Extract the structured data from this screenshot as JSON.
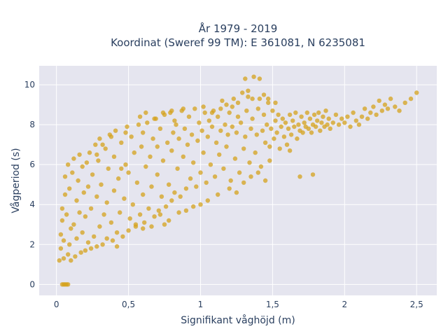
{
  "chart_data": {
    "type": "scatter",
    "title_line1": "År 1979 - 2019",
    "title_line2": "Koordinat (Sweref 99 TM): E 361081, N 6235081",
    "xlabel": "Signifikant våghöjd (m)",
    "ylabel": "Vågperiod (s)",
    "xlim": [
      -0.12,
      2.64
    ],
    "ylim": [
      -0.55,
      10.95
    ],
    "x_ticks": [
      0,
      0.5,
      1,
      1.5,
      2,
      2.5
    ],
    "x_tick_labels": [
      "0",
      "0,5",
      "1",
      "1,5",
      "2",
      "2,5"
    ],
    "y_ticks": [
      0,
      2,
      4,
      6,
      8,
      10
    ],
    "y_tick_labels": [
      "0",
      "2",
      "4",
      "6",
      "8",
      "10"
    ],
    "grid": true,
    "colors": {
      "marker": "#d4a21c",
      "plot_bg": "#e5e5ef",
      "grid": "#ffffff"
    },
    "marker_opacity": 0.75,
    "points": [
      [
        0.04,
        0
      ],
      [
        0.05,
        0
      ],
      [
        0.06,
        0
      ],
      [
        0.07,
        0
      ],
      [
        0.08,
        0
      ],
      [
        0.02,
        1.2
      ],
      [
        0.03,
        1.8
      ],
      [
        0.03,
        2.5
      ],
      [
        0.04,
        3.2
      ],
      [
        0.04,
        3.8
      ],
      [
        0.05,
        1.3
      ],
      [
        0.05,
        2.2
      ],
      [
        0.06,
        4.5
      ],
      [
        0.06,
        5.4
      ],
      [
        0.07,
        3.5
      ],
      [
        0.08,
        1.5
      ],
      [
        0.08,
        6.0
      ],
      [
        0.09,
        2.0
      ],
      [
        0.09,
        4.8
      ],
      [
        0.1,
        1.2
      ],
      [
        0.1,
        2.8
      ],
      [
        0.11,
        5.6
      ],
      [
        0.12,
        3.0
      ],
      [
        0.12,
        6.3
      ],
      [
        0.13,
        1.4
      ],
      [
        0.14,
        2.3
      ],
      [
        0.14,
        4.2
      ],
      [
        0.15,
        5.2
      ],
      [
        0.16,
        3.6
      ],
      [
        0.16,
        6.5
      ],
      [
        0.17,
        1.6
      ],
      [
        0.18,
        2.6
      ],
      [
        0.18,
        5.9
      ],
      [
        0.19,
        4.6
      ],
      [
        0.2,
        1.7
      ],
      [
        0.2,
        3.4
      ],
      [
        0.21,
        6.1
      ],
      [
        0.22,
        2.1
      ],
      [
        0.22,
        4.9
      ],
      [
        0.23,
        6.6
      ],
      [
        0.24,
        1.8
      ],
      [
        0.24,
        3.8
      ],
      [
        0.25,
        5.5
      ],
      [
        0.26,
        2.4
      ],
      [
        0.27,
        7.0
      ],
      [
        0.28,
        1.9
      ],
      [
        0.28,
        4.4
      ],
      [
        0.29,
        6.2
      ],
      [
        0.3,
        2.9
      ],
      [
        0.3,
        7.3
      ],
      [
        0.31,
        5.0
      ],
      [
        0.32,
        2.0
      ],
      [
        0.33,
        3.5
      ],
      [
        0.34,
        6.8
      ],
      [
        0.35,
        4.1
      ],
      [
        0.35,
        2.3
      ],
      [
        0.36,
        5.8
      ],
      [
        0.37,
        7.5
      ],
      [
        0.38,
        3.1
      ],
      [
        0.39,
        2.2
      ],
      [
        0.4,
        4.7
      ],
      [
        0.4,
        6.4
      ],
      [
        0.41,
        7.7
      ],
      [
        0.42,
        2.6
      ],
      [
        0.43,
        5.3
      ],
      [
        0.44,
        3.6
      ],
      [
        0.45,
        7.1
      ],
      [
        0.46,
        2.4
      ],
      [
        0.47,
        4.3
      ],
      [
        0.48,
        6.0
      ],
      [
        0.49,
        7.9
      ],
      [
        0.5,
        2.7
      ],
      [
        0.5,
        5.6
      ],
      [
        0.51,
        3.3
      ],
      [
        0.52,
        7.4
      ],
      [
        0.53,
        4.0
      ],
      [
        0.54,
        6.6
      ],
      [
        0.55,
        2.9
      ],
      [
        0.56,
        5.1
      ],
      [
        0.57,
        8.0
      ],
      [
        0.58,
        3.5
      ],
      [
        0.59,
        6.9
      ],
      [
        0.6,
        4.5
      ],
      [
        0.6,
        7.6
      ],
      [
        0.61,
        3.1
      ],
      [
        0.62,
        5.9
      ],
      [
        0.63,
        8.1
      ],
      [
        0.64,
        3.8
      ],
      [
        0.65,
        6.4
      ],
      [
        0.66,
        4.9
      ],
      [
        0.67,
        7.3
      ],
      [
        0.68,
        3.4
      ],
      [
        0.69,
        8.3
      ],
      [
        0.7,
        5.5
      ],
      [
        0.7,
        6.9
      ],
      [
        0.71,
        3.7
      ],
      [
        0.72,
        7.8
      ],
      [
        0.73,
        4.4
      ],
      [
        0.74,
        6.2
      ],
      [
        0.75,
        8.5
      ],
      [
        0.76,
        3.9
      ],
      [
        0.77,
        7.1
      ],
      [
        0.78,
        5.0
      ],
      [
        0.79,
        8.6
      ],
      [
        0.8,
        4.2
      ],
      [
        0.8,
        6.7
      ],
      [
        0.81,
        7.6
      ],
      [
        0.82,
        4.6
      ],
      [
        0.83,
        8.0
      ],
      [
        0.84,
        5.8
      ],
      [
        0.85,
        7.3
      ],
      [
        0.86,
        4.4
      ],
      [
        0.87,
        8.7
      ],
      [
        0.88,
        6.4
      ],
      [
        0.89,
        7.8
      ],
      [
        0.9,
        4.8
      ],
      [
        0.91,
        7.0
      ],
      [
        0.92,
        8.4
      ],
      [
        0.93,
        5.3
      ],
      [
        0.94,
        7.5
      ],
      [
        0.95,
        6.1
      ],
      [
        0.96,
        8.8
      ],
      [
        0.97,
        4.9
      ],
      [
        0.98,
        7.2
      ],
      [
        0.99,
        8.1
      ],
      [
        1.0,
        5.6
      ],
      [
        1.01,
        7.7
      ],
      [
        1.02,
        6.6
      ],
      [
        1.03,
        8.6
      ],
      [
        1.04,
        5.1
      ],
      [
        1.05,
        7.4
      ],
      [
        1.06,
        8.2
      ],
      [
        1.07,
        6.0
      ],
      [
        1.08,
        7.9
      ],
      [
        1.09,
        8.7
      ],
      [
        1.1,
        5.4
      ],
      [
        1.11,
        7.1
      ],
      [
        1.12,
        8.4
      ],
      [
        1.13,
        6.5
      ],
      [
        1.14,
        7.7
      ],
      [
        1.15,
        9.2
      ],
      [
        1.16,
        5.8
      ],
      [
        1.17,
        8.0
      ],
      [
        1.18,
        6.9
      ],
      [
        1.19,
        7.5
      ],
      [
        1.2,
        8.6
      ],
      [
        1.21,
        5.2
      ],
      [
        1.22,
        7.9
      ],
      [
        1.23,
        9.3
      ],
      [
        1.24,
        6.3
      ],
      [
        1.25,
        7.6
      ],
      [
        1.26,
        8.4
      ],
      [
        1.27,
        5.6
      ],
      [
        1.28,
        8.1
      ],
      [
        1.29,
        9.6
      ],
      [
        1.3,
        6.8
      ],
      [
        1.31,
        7.4
      ],
      [
        1.32,
        8.7
      ],
      [
        1.33,
        9.4
      ],
      [
        1.34,
        6.1
      ],
      [
        1.35,
        7.8
      ],
      [
        1.36,
        8.3
      ],
      [
        1.37,
        10.4
      ],
      [
        1.38,
        6.6
      ],
      [
        1.39,
        7.5
      ],
      [
        1.4,
        8.8
      ],
      [
        1.41,
        9.3
      ],
      [
        1.42,
        5.9
      ],
      [
        1.43,
        7.7
      ],
      [
        1.44,
        8.5
      ],
      [
        1.45,
        7.1
      ],
      [
        1.46,
        8.0
      ],
      [
        1.47,
        9.1
      ],
      [
        1.48,
        6.9
      ],
      [
        1.49,
        7.8
      ],
      [
        1.5,
        8.7
      ],
      [
        1.51,
        7.3
      ],
      [
        1.52,
        8.2
      ],
      [
        1.53,
        7.6
      ],
      [
        1.54,
        8.5
      ],
      [
        1.55,
        6.8
      ],
      [
        1.56,
        7.9
      ],
      [
        1.57,
        8.3
      ],
      [
        1.58,
        7.4
      ],
      [
        1.59,
        8.1
      ],
      [
        1.6,
        7.0
      ],
      [
        1.61,
        7.8
      ],
      [
        1.62,
        8.5
      ],
      [
        1.63,
        7.5
      ],
      [
        1.64,
        8.2
      ],
      [
        1.65,
        7.9
      ],
      [
        1.66,
        8.6
      ],
      [
        1.67,
        7.3
      ],
      [
        1.68,
        8.0
      ],
      [
        1.69,
        7.7
      ],
      [
        1.7,
        8.4
      ],
      [
        1.71,
        7.6
      ],
      [
        1.72,
        8.1
      ],
      [
        1.73,
        7.9
      ],
      [
        1.74,
        8.6
      ],
      [
        1.75,
        7.8
      ],
      [
        1.76,
        8.3
      ],
      [
        1.77,
        7.6
      ],
      [
        1.78,
        8.0
      ],
      [
        1.79,
        8.5
      ],
      [
        1.8,
        7.9
      ],
      [
        1.81,
        8.2
      ],
      [
        1.82,
        8.6
      ],
      [
        1.83,
        7.7
      ],
      [
        1.84,
        8.1
      ],
      [
        1.85,
        8.4
      ],
      [
        1.86,
        7.9
      ],
      [
        1.87,
        8.7
      ],
      [
        1.88,
        8.0
      ],
      [
        1.89,
        8.3
      ],
      [
        1.9,
        7.8
      ],
      [
        1.92,
        8.1
      ],
      [
        1.94,
        8.5
      ],
      [
        1.96,
        8.0
      ],
      [
        1.98,
        8.3
      ],
      [
        2.0,
        8.1
      ],
      [
        2.02,
        8.4
      ],
      [
        2.04,
        7.9
      ],
      [
        2.06,
        8.6
      ],
      [
        2.08,
        8.2
      ],
      [
        2.1,
        8.0
      ],
      [
        2.12,
        8.4
      ],
      [
        2.14,
        8.8
      ],
      [
        2.16,
        8.3
      ],
      [
        2.18,
        8.6
      ],
      [
        2.2,
        8.9
      ],
      [
        2.22,
        8.5
      ],
      [
        2.24,
        9.2
      ],
      [
        2.26,
        8.7
      ],
      [
        2.28,
        9.0
      ],
      [
        2.3,
        8.8
      ],
      [
        2.32,
        9.3
      ],
      [
        2.35,
        8.9
      ],
      [
        2.38,
        8.7
      ],
      [
        2.42,
        9.1
      ],
      [
        2.46,
        9.3
      ],
      [
        2.5,
        9.6
      ],
      [
        1.62,
        6.7
      ],
      [
        1.78,
        5.5
      ],
      [
        1.69,
        5.4
      ],
      [
        0.42,
        1.9
      ],
      [
        0.45,
        5.8
      ],
      [
        0.55,
        3.0
      ],
      [
        0.6,
        2.8
      ],
      [
        0.66,
        2.9
      ],
      [
        0.72,
        3.5
      ],
      [
        0.75,
        3.0
      ],
      [
        0.78,
        3.2
      ],
      [
        0.85,
        3.6
      ],
      [
        0.9,
        3.7
      ],
      [
        0.95,
        3.9
      ],
      [
        1.0,
        4.0
      ],
      [
        1.05,
        4.2
      ],
      [
        1.12,
        4.5
      ],
      [
        1.2,
        4.8
      ],
      [
        1.25,
        4.6
      ],
      [
        1.3,
        5.1
      ],
      [
        1.35,
        5.4
      ],
      [
        1.4,
        5.6
      ],
      [
        1.45,
        5.2
      ],
      [
        1.48,
        6.2
      ],
      [
        0.28,
        6.5
      ],
      [
        0.32,
        7.0
      ],
      [
        0.38,
        7.4
      ],
      [
        0.48,
        7.6
      ],
      [
        0.58,
        8.4
      ],
      [
        0.62,
        8.6
      ],
      [
        0.68,
        8.3
      ],
      [
        0.8,
        8.7
      ],
      [
        0.88,
        8.8
      ],
      [
        0.74,
        8.6
      ],
      [
        0.82,
        8.2
      ],
      [
        1.02,
        8.9
      ],
      [
        1.08,
        8.6
      ],
      [
        1.14,
        8.8
      ],
      [
        1.18,
        9.0
      ],
      [
        1.22,
        8.9
      ],
      [
        1.26,
        9.1
      ],
      [
        1.31,
        10.3
      ],
      [
        1.33,
        9.7
      ],
      [
        1.36,
        9.3
      ],
      [
        1.41,
        10.3
      ],
      [
        1.44,
        9.5
      ],
      [
        1.47,
        9.3
      ],
      [
        1.52,
        9.1
      ]
    ]
  }
}
